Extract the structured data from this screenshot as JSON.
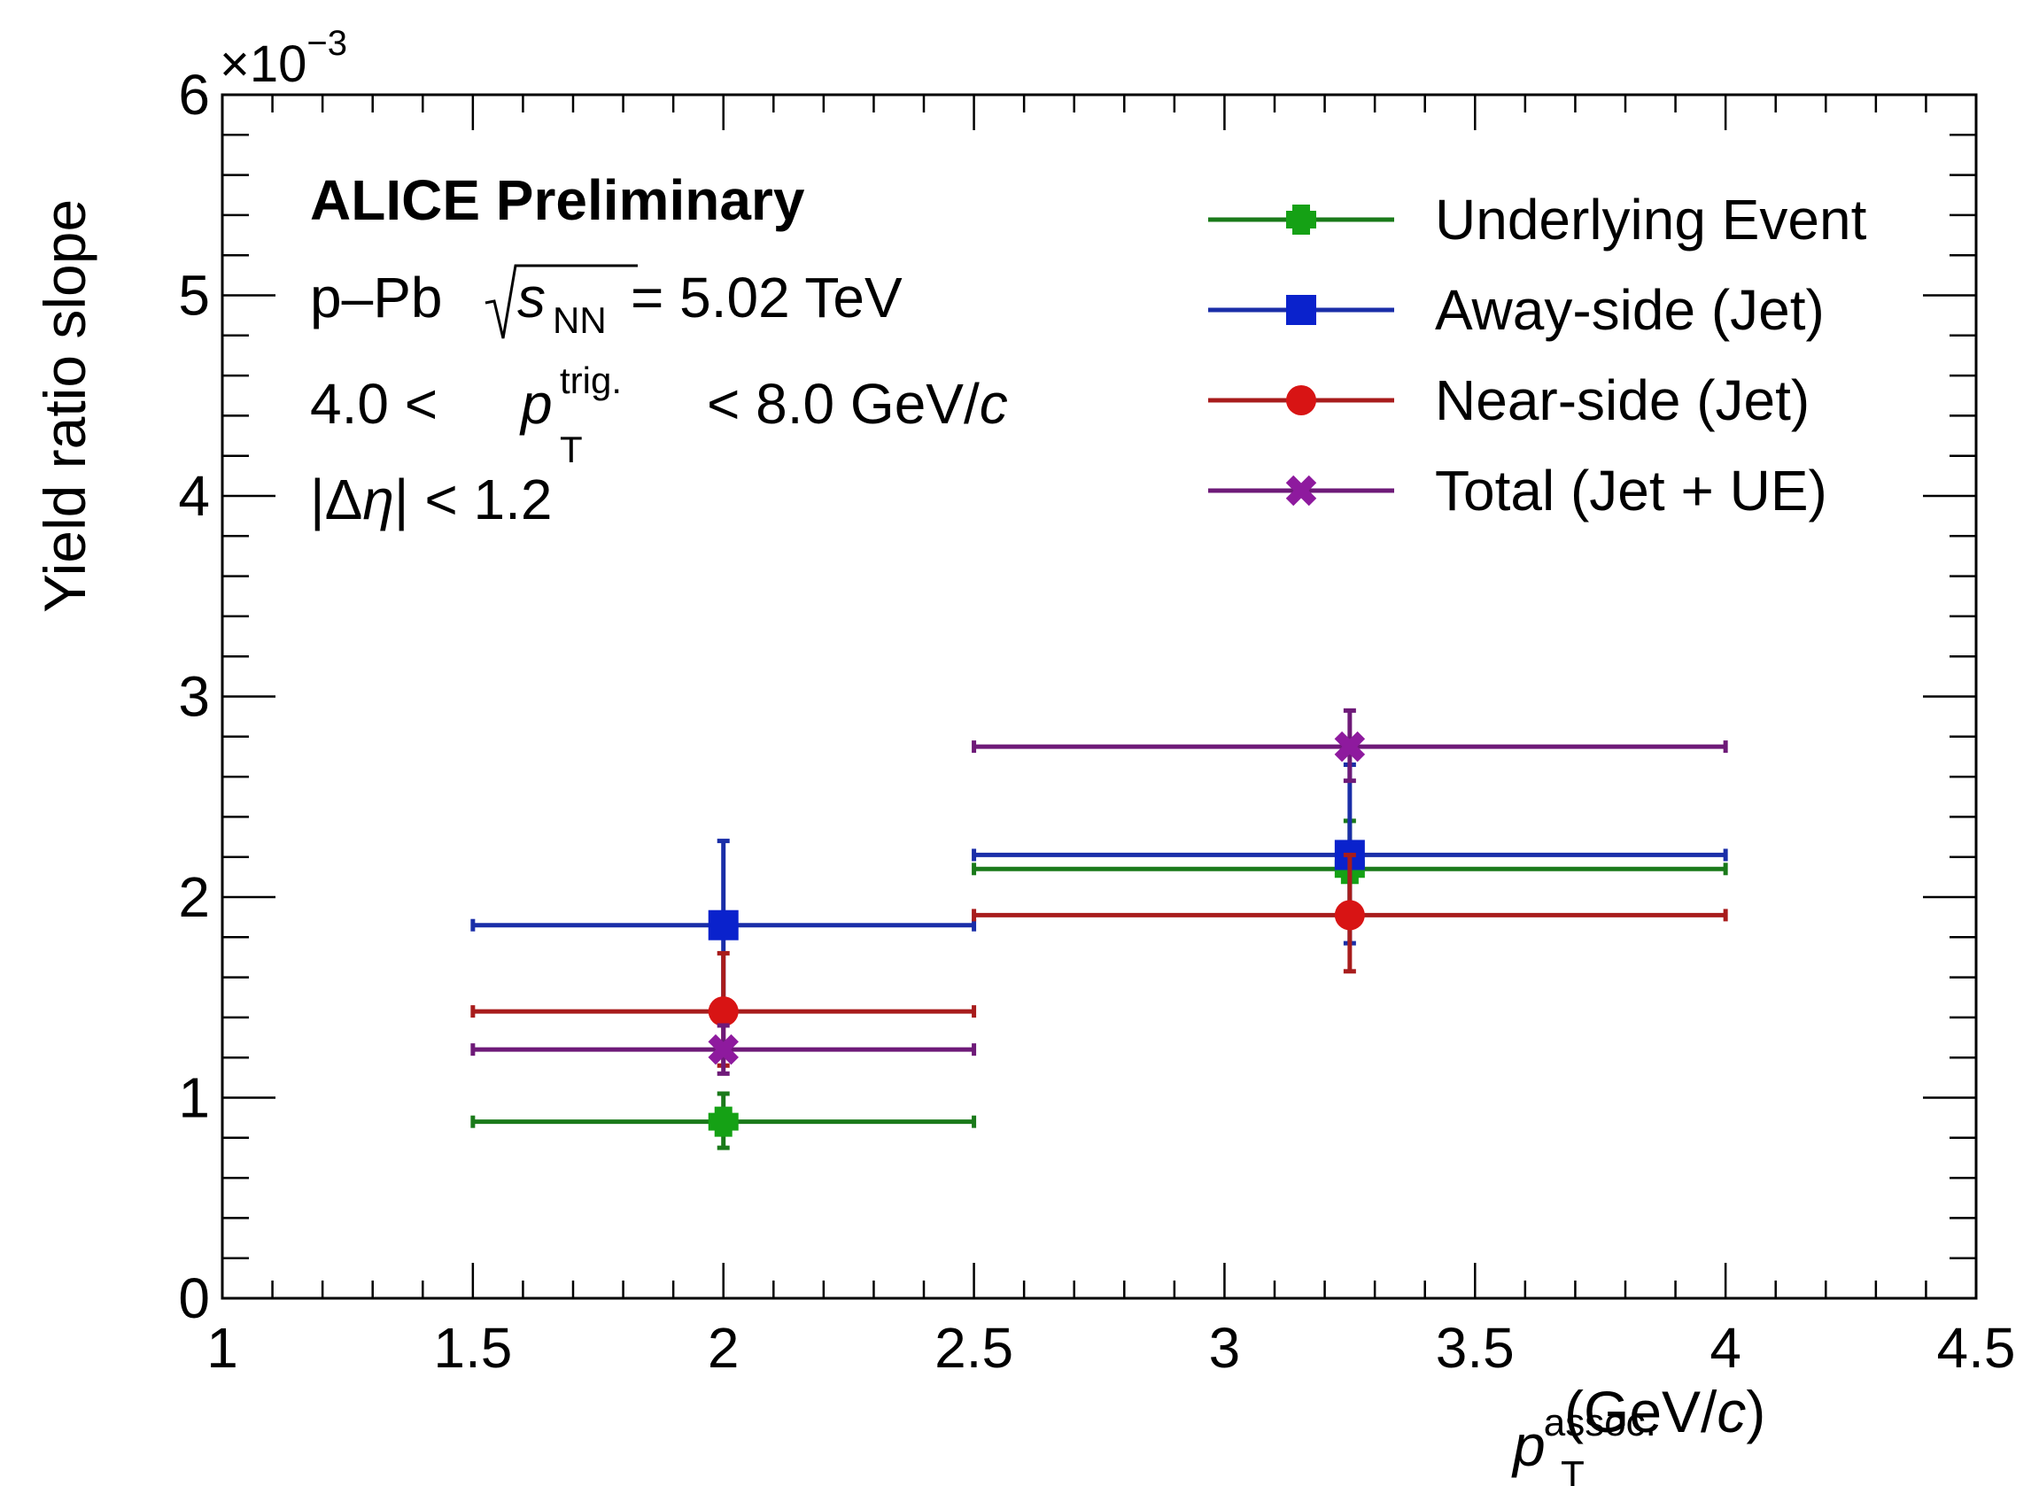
{
  "chart_data": {
    "type": "scatter",
    "experiment_label": "ALICE Preliminary",
    "annotations": {
      "system": "p–Pb",
      "energy_var": "s",
      "energy_sub": "NN",
      "energy_value": "= 5.02 TeV",
      "ptrig_lo": "4.0 <",
      "ptrig_var": "p",
      "ptrig_sub": "T",
      "ptrig_sup": "trig.",
      "ptrig_hi": "< 8.0 GeV/",
      "ptrig_unit_it": "c",
      "eta_bar1": "|Δ",
      "eta_var": "η",
      "eta_bar2": "| < 1.2"
    },
    "xlabel_var": "p",
    "xlabel_sub": "T",
    "xlabel_sup": "assoc.",
    "xlabel_unit_pre": "(GeV/",
    "xlabel_unit_it": "c",
    "xlabel_unit_post": ")",
    "ylabel": "Yield ratio slope",
    "y_exponent_prefix": "×10",
    "y_exponent_power": "−3",
    "xlim": [
      1,
      4.5
    ],
    "ylim": [
      0,
      6
    ],
    "x_major_ticks": [
      1,
      1.5,
      2,
      2.5,
      3,
      3.5,
      4,
      4.5
    ],
    "x_tick_labels": [
      "1",
      "1.5",
      "2",
      "2.5",
      "3",
      "3.5",
      "4",
      "4.5"
    ],
    "y_major_ticks": [
      0,
      1,
      2,
      3,
      4,
      5,
      6
    ],
    "y_tick_labels": [
      "0",
      "1",
      "2",
      "3",
      "4",
      "5",
      "6"
    ],
    "legend_position": "top-right",
    "series": [
      {
        "name": "Underlying Event",
        "color": "#1a7a1a",
        "marker_color": "#15a115",
        "marker": "cross",
        "points": [
          {
            "x": 2.0,
            "y": 0.88,
            "xlo": 1.5,
            "xhi": 2.5,
            "ylo": 0.75,
            "yhi": 1.02
          },
          {
            "x": 3.25,
            "y": 2.14,
            "xlo": 2.5,
            "xhi": 4.0,
            "ylo": 1.92,
            "yhi": 2.38
          }
        ]
      },
      {
        "name": "Away-side (Jet)",
        "color": "#1a2ea8",
        "marker_color": "#0a22cc",
        "marker": "square",
        "points": [
          {
            "x": 2.0,
            "y": 1.86,
            "xlo": 1.5,
            "xhi": 2.5,
            "ylo": 1.44,
            "yhi": 2.28
          },
          {
            "x": 3.25,
            "y": 2.21,
            "xlo": 2.5,
            "xhi": 4.0,
            "ylo": 1.77,
            "yhi": 2.66
          }
        ]
      },
      {
        "name": "Near-side (Jet)",
        "color": "#a81c1c",
        "marker_color": "#d81414",
        "marker": "circle",
        "points": [
          {
            "x": 2.0,
            "y": 1.43,
            "xlo": 1.5,
            "xhi": 2.5,
            "ylo": 1.16,
            "yhi": 1.72
          },
          {
            "x": 3.25,
            "y": 1.91,
            "xlo": 2.5,
            "xhi": 4.0,
            "ylo": 1.63,
            "yhi": 2.21
          }
        ]
      },
      {
        "name": "Total (Jet + UE)",
        "color": "#6e1a78",
        "marker_color": "#8e1a9e",
        "marker": "x",
        "points": [
          {
            "x": 2.0,
            "y": 1.24,
            "xlo": 1.5,
            "xhi": 2.5,
            "ylo": 1.12,
            "yhi": 1.36
          },
          {
            "x": 3.25,
            "y": 2.75,
            "xlo": 2.5,
            "xhi": 4.0,
            "ylo": 2.58,
            "yhi": 2.93
          }
        ]
      }
    ]
  }
}
